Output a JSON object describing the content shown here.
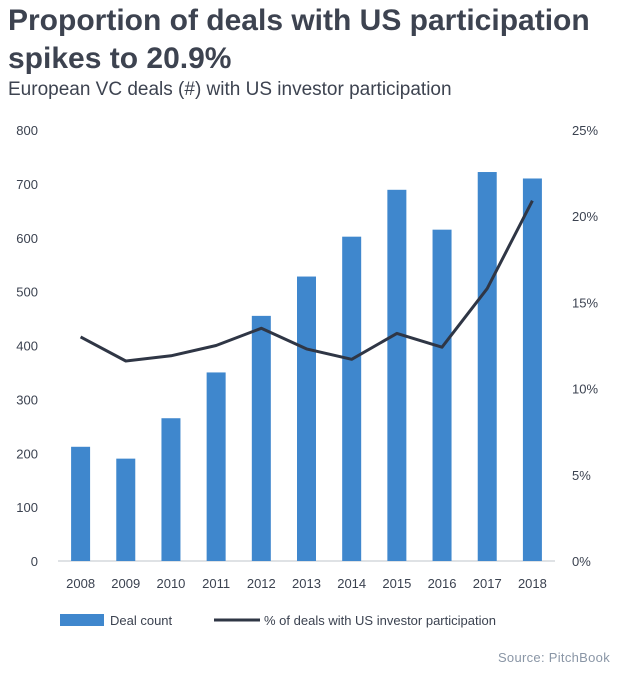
{
  "title": "Proportion of deals with US participation spikes to 20.9%",
  "subtitle": "European VC deals (#) with US investor participation",
  "source": "Source: PitchBook",
  "colors": {
    "bar": "#3f87cd",
    "line": "#2f3645"
  },
  "chart_data": {
    "type": "bar",
    "title": "Proportion of deals with US participation spikes to 20.9%",
    "subtitle": "European VC deals (#) with US investor participation",
    "categories": [
      "2008",
      "2009",
      "2010",
      "2011",
      "2012",
      "2013",
      "2014",
      "2015",
      "2016",
      "2017",
      "2018"
    ],
    "series": [
      {
        "name": "Deal count",
        "type": "bar",
        "axis": "left",
        "values": [
          212,
          190,
          265,
          350,
          455,
          528,
          602,
          689,
          615,
          722,
          710
        ]
      },
      {
        "name": "% of deals with US investor participation",
        "type": "line",
        "axis": "right",
        "values": [
          13.0,
          11.6,
          11.9,
          12.5,
          13.5,
          12.3,
          11.7,
          13.2,
          12.4,
          15.8,
          20.9
        ]
      }
    ],
    "y_left": {
      "ylim": [
        0,
        800
      ],
      "ticks": [
        "0",
        "100",
        "200",
        "300",
        "400",
        "500",
        "600",
        "700",
        "800"
      ]
    },
    "y_right": {
      "ylim": [
        0,
        25
      ],
      "ticks": [
        "0%",
        "5%",
        "10%",
        "15%",
        "20%",
        "25%"
      ]
    },
    "legend": {
      "position": "bottom"
    },
    "grid": false
  }
}
